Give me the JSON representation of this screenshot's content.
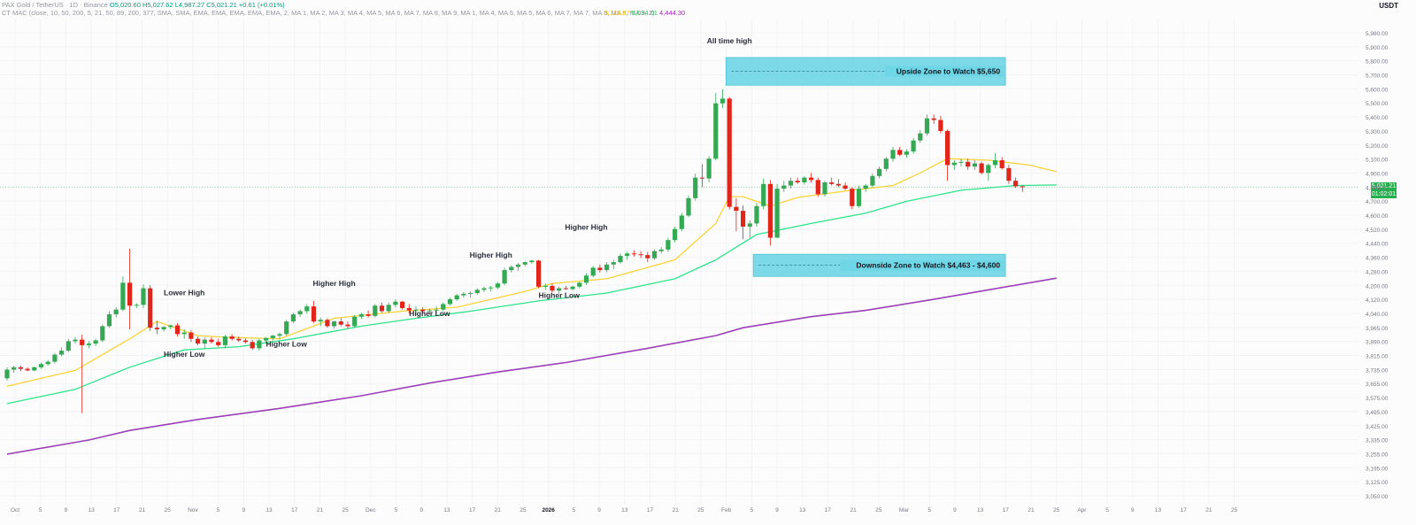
{
  "header": {
    "symbol_line": "PAX Gold / TetherUS · 1D · Binance",
    "ohlc": {
      "open": "O5,020.60",
      "high": "H5,027.62",
      "low": "L4,987.27",
      "close": "C5,021.21",
      "change": "+0.61 (+0.01%)"
    },
    "indicator_line": "CT MAC (close, 10, 50, 200, 5, 21, 50, 89, 200, 377, SMA, SMA, EMA, EMA, EMA, EMA, EMA, 2, MA 1, MA 2, MA 3, MA 4, MA 5, MA 6, MA 7, MA 8, MA 9, MA 1, MA 4, MA 5, MA 5, MA 6, MA 7, MA 7, MA 8, MA 8, MA 9, 2)",
    "ma_values": [
      {
        "text": "5,118.67",
        "color": "#f7c500"
      },
      {
        "text": "5,034.01",
        "color": "#22c55e"
      },
      {
        "text": "4,444.30",
        "color": "#9c27b0"
      }
    ]
  },
  "currency": "USDT",
  "last_price": "5,021.21",
  "countdown": "01:02:01",
  "colors": {
    "up": "#34a853",
    "down": "#e1251b",
    "ema_fast": "#f9d33a",
    "ema_mid": "#2ee38a",
    "ema_slow": "#9c3fb8",
    "zone": "#6fd6e6"
  },
  "chart_data": {
    "type": "candlestick",
    "y_range": [
      3050,
      5980
    ],
    "y_ticks": [
      "5,980.00",
      "5,900.00",
      "5,800.00",
      "5,700.00",
      "5,600.00",
      "5,500.00",
      "5,400.00",
      "5,300.00",
      "5,200.00",
      "5,100.00",
      "4,900.00",
      "4,800.00",
      "4,700.00",
      "4,600.00",
      "4,520.00",
      "4,440.00",
      "4,360.00",
      "4,280.00",
      "4,200.00",
      "4,120.00",
      "4,040.00",
      "3,965.00",
      "3,890.00",
      "3,815.00",
      "3,735.00",
      "3,655.00",
      "3,575.00",
      "3,495.00",
      "3,425.00",
      "3,335.00",
      "3,255.00",
      "3,195.00",
      "3,125.00",
      "3,050.00"
    ],
    "x_ticks": [
      "Oct",
      "5",
      "9",
      "13",
      "17",
      "21",
      "25",
      "Nov",
      "5",
      "9",
      "13",
      "17",
      "21",
      "25",
      "Dec",
      "5",
      "9",
      "13",
      "17",
      "21",
      "25",
      "2026",
      "5",
      "9",
      "13",
      "17",
      "21",
      "25",
      "Feb",
      "5",
      "9",
      "13",
      "17",
      "21",
      "25",
      "Mar",
      "5",
      "9",
      "13",
      "17",
      "21",
      "25",
      "Apr",
      "5",
      "9",
      "13",
      "17",
      "21",
      "25"
    ],
    "candles": [
      [
        3810,
        3880,
        3795,
        3865
      ],
      [
        3865,
        3890,
        3845,
        3880
      ],
      [
        3880,
        3890,
        3855,
        3870
      ],
      [
        3870,
        3880,
        3855,
        3860
      ],
      [
        3860,
        3885,
        3855,
        3880
      ],
      [
        3880,
        3910,
        3870,
        3900
      ],
      [
        3900,
        3925,
        3890,
        3915
      ],
      [
        3915,
        3970,
        3905,
        3960
      ],
      [
        3960,
        4005,
        3950,
        3985
      ],
      [
        3985,
        4060,
        3975,
        4045
      ],
      [
        4045,
        4070,
        4030,
        4055
      ],
      [
        4055,
        4085,
        3590,
        4020
      ],
      [
        4020,
        4045,
        4000,
        4030
      ],
      [
        4030,
        4060,
        4015,
        4050
      ],
      [
        4050,
        4150,
        4040,
        4140
      ],
      [
        4140,
        4235,
        4130,
        4215
      ],
      [
        4215,
        4260,
        4195,
        4245
      ],
      [
        4245,
        4455,
        4235,
        4415
      ],
      [
        4415,
        4630,
        4120,
        4270
      ],
      [
        4270,
        4285,
        4255,
        4275
      ],
      [
        4275,
        4405,
        4255,
        4380
      ],
      [
        4380,
        4400,
        4110,
        4130
      ],
      [
        4130,
        4175,
        4090,
        4120
      ],
      [
        4120,
        4140,
        4105,
        4135
      ],
      [
        4135,
        4150,
        4120,
        4145
      ],
      [
        4145,
        4160,
        4075,
        4090
      ],
      [
        4090,
        4120,
        4060,
        4100
      ],
      [
        4100,
        4115,
        4040,
        4060
      ],
      [
        4060,
        4075,
        4020,
        4030
      ],
      [
        4030,
        4070,
        4000,
        4055
      ],
      [
        4055,
        4070,
        4030,
        4040
      ],
      [
        4040,
        4060,
        4010,
        4020
      ],
      [
        4020,
        4085,
        4000,
        4075
      ],
      [
        4075,
        4090,
        4050,
        4060
      ],
      [
        4060,
        4075,
        4040,
        4050
      ],
      [
        4050,
        4065,
        4030,
        4040
      ],
      [
        4040,
        4055,
        3990,
        4000
      ],
      [
        4000,
        4060,
        3985,
        4050
      ],
      [
        4050,
        4070,
        4030,
        4065
      ],
      [
        4065,
        4085,
        4050,
        4080
      ],
      [
        4080,
        4100,
        4060,
        4090
      ],
      [
        4090,
        4180,
        4080,
        4170
      ],
      [
        4170,
        4225,
        4160,
        4215
      ],
      [
        4215,
        4245,
        4200,
        4235
      ],
      [
        4235,
        4280,
        4220,
        4265
      ],
      [
        4265,
        4300,
        4160,
        4170
      ],
      [
        4170,
        4195,
        4140,
        4180
      ],
      [
        4180,
        4190,
        4130,
        4140
      ],
      [
        4140,
        4175,
        4125,
        4170
      ],
      [
        4170,
        4190,
        4140,
        4150
      ],
      [
        4150,
        4170,
        4125,
        4140
      ],
      [
        4140,
        4210,
        4130,
        4200
      ],
      [
        4200,
        4225,
        4185,
        4215
      ],
      [
        4215,
        4240,
        4195,
        4205
      ],
      [
        4205,
        4280,
        4195,
        4270
      ],
      [
        4270,
        4290,
        4225,
        4235
      ],
      [
        4235,
        4290,
        4225,
        4275
      ],
      [
        4275,
        4310,
        4260,
        4295
      ],
      [
        4295,
        4300,
        4245,
        4255
      ],
      [
        4255,
        4280,
        4220,
        4240
      ],
      [
        4240,
        4265,
        4210,
        4245
      ],
      [
        4245,
        4260,
        4220,
        4235
      ],
      [
        4235,
        4250,
        4215,
        4240
      ],
      [
        4240,
        4265,
        4220,
        4245
      ],
      [
        4245,
        4290,
        4235,
        4280
      ],
      [
        4280,
        4320,
        4270,
        4310
      ],
      [
        4310,
        4345,
        4300,
        4335
      ],
      [
        4335,
        4355,
        4320,
        4345
      ],
      [
        4345,
        4360,
        4320,
        4350
      ],
      [
        4350,
        4380,
        4340,
        4370
      ],
      [
        4370,
        4390,
        4355,
        4380
      ],
      [
        4380,
        4395,
        4360,
        4385
      ],
      [
        4385,
        4420,
        4375,
        4410
      ],
      [
        4410,
        4510,
        4400,
        4495
      ],
      [
        4495,
        4525,
        4480,
        4515
      ],
      [
        4515,
        4540,
        4490,
        4530
      ],
      [
        4530,
        4550,
        4520,
        4545
      ],
      [
        4545,
        4560,
        4535,
        4555
      ],
      [
        4555,
        4560,
        4380,
        4390
      ],
      [
        4390,
        4410,
        4370,
        4395
      ],
      [
        4395,
        4410,
        4355,
        4365
      ],
      [
        4365,
        4390,
        4345,
        4380
      ],
      [
        4380,
        4395,
        4370,
        4375
      ],
      [
        4375,
        4395,
        4365,
        4390
      ],
      [
        4390,
        4420,
        4380,
        4415
      ],
      [
        4415,
        4475,
        4400,
        4460
      ],
      [
        4460,
        4520,
        4450,
        4510
      ],
      [
        4510,
        4530,
        4480,
        4495
      ],
      [
        4495,
        4545,
        4480,
        4530
      ],
      [
        4530,
        4560,
        4500,
        4545
      ],
      [
        4545,
        4600,
        4535,
        4585
      ],
      [
        4585,
        4610,
        4560,
        4600
      ],
      [
        4600,
        4620,
        4580,
        4595
      ],
      [
        4595,
        4615,
        4570,
        4590
      ],
      [
        4590,
        4610,
        4545,
        4570
      ],
      [
        4570,
        4625,
        4560,
        4615
      ],
      [
        4615,
        4640,
        4600,
        4625
      ],
      [
        4625,
        4700,
        4610,
        4685
      ],
      [
        4685,
        4770,
        4670,
        4755
      ],
      [
        4755,
        4855,
        4740,
        4840
      ],
      [
        4840,
        4965,
        4830,
        4950
      ],
      [
        4950,
        5105,
        4935,
        5080
      ],
      [
        5080,
        5165,
        5020,
        5075
      ],
      [
        5075,
        5215,
        5050,
        5200
      ],
      [
        5200,
        5615,
        5190,
        5550
      ],
      [
        5550,
        5640,
        5520,
        5580
      ],
      [
        5580,
        5590,
        4880,
        4895
      ],
      [
        4895,
        4950,
        4740,
        4870
      ],
      [
        4870,
        4905,
        4690,
        4770
      ],
      [
        4770,
        4810,
        4700,
        4790
      ],
      [
        4790,
        4920,
        4770,
        4900
      ],
      [
        4900,
        5075,
        4880,
        5040
      ],
      [
        5040,
        5065,
        4650,
        4700
      ],
      [
        4700,
        5040,
        4700,
        5010
      ],
      [
        5010,
        5060,
        4990,
        5030
      ],
      [
        5030,
        5080,
        5010,
        5060
      ],
      [
        5060,
        5080,
        5040,
        5050
      ],
      [
        5050,
        5090,
        5035,
        5080
      ],
      [
        5080,
        5110,
        5050,
        5065
      ],
      [
        5065,
        5080,
        4960,
        4975
      ],
      [
        4975,
        5060,
        4960,
        5050
      ],
      [
        5050,
        5080,
        5030,
        5040
      ],
      [
        5040,
        5070,
        5020,
        5030
      ],
      [
        5030,
        5050,
        5000,
        5010
      ],
      [
        5010,
        5020,
        4880,
        4900
      ],
      [
        4900,
        5030,
        4890,
        5010
      ],
      [
        5010,
        5040,
        4990,
        5030
      ],
      [
        5030,
        5105,
        5020,
        5090
      ],
      [
        5090,
        5150,
        5075,
        5135
      ],
      [
        5135,
        5210,
        5120,
        5200
      ],
      [
        5200,
        5275,
        5180,
        5255
      ],
      [
        5255,
        5275,
        5215,
        5225
      ],
      [
        5225,
        5260,
        5205,
        5245
      ],
      [
        5245,
        5330,
        5230,
        5315
      ],
      [
        5315,
        5380,
        5300,
        5360
      ],
      [
        5360,
        5480,
        5345,
        5455
      ],
      [
        5455,
        5480,
        5420,
        5445
      ],
      [
        5445,
        5470,
        5360,
        5375
      ],
      [
        5375,
        5385,
        5060,
        5160
      ],
      [
        5160,
        5190,
        5130,
        5175
      ],
      [
        5175,
        5200,
        5150,
        5180
      ],
      [
        5180,
        5200,
        5130,
        5150
      ],
      [
        5150,
        5190,
        5130,
        5170
      ],
      [
        5170,
        5180,
        5100,
        5110
      ],
      [
        5110,
        5170,
        5060,
        5160
      ],
      [
        5160,
        5235,
        5140,
        5190
      ],
      [
        5190,
        5210,
        5130,
        5140
      ],
      [
        5140,
        5160,
        5040,
        5060
      ],
      [
        5060,
        5080,
        5015,
        5025
      ],
      [
        5025,
        5030,
        4990,
        5021
      ]
    ],
    "ema_fast_points": [
      [
        0,
        3760
      ],
      [
        10,
        3860
      ],
      [
        18,
        4060
      ],
      [
        22,
        4170
      ],
      [
        28,
        4080
      ],
      [
        32,
        4070
      ],
      [
        40,
        4060
      ],
      [
        48,
        4190
      ],
      [
        58,
        4235
      ],
      [
        66,
        4260
      ],
      [
        76,
        4360
      ],
      [
        80,
        4410
      ],
      [
        88,
        4440
      ],
      [
        98,
        4560
      ],
      [
        104,
        4790
      ],
      [
        106,
        4960
      ],
      [
        108,
        4960
      ],
      [
        112,
        4900
      ],
      [
        116,
        4955
      ],
      [
        124,
        5000
      ],
      [
        130,
        5030
      ],
      [
        134,
        5110
      ],
      [
        138,
        5200
      ],
      [
        144,
        5190
      ],
      [
        150,
        5160
      ],
      [
        154,
        5118
      ]
    ],
    "ema_mid_points": [
      [
        0,
        3650
      ],
      [
        10,
        3740
      ],
      [
        18,
        3880
      ],
      [
        26,
        3990
      ],
      [
        34,
        4010
      ],
      [
        42,
        4060
      ],
      [
        52,
        4140
      ],
      [
        60,
        4190
      ],
      [
        68,
        4235
      ],
      [
        78,
        4300
      ],
      [
        88,
        4350
      ],
      [
        98,
        4440
      ],
      [
        104,
        4560
      ],
      [
        110,
        4720
      ],
      [
        118,
        4790
      ],
      [
        126,
        4855
      ],
      [
        132,
        4930
      ],
      [
        140,
        5000
      ],
      [
        148,
        5030
      ],
      [
        154,
        5034
      ]
    ],
    "ema_slow_points": [
      [
        0,
        3330
      ],
      [
        12,
        3420
      ],
      [
        18,
        3480
      ],
      [
        28,
        3550
      ],
      [
        40,
        3620
      ],
      [
        52,
        3700
      ],
      [
        62,
        3780
      ],
      [
        72,
        3850
      ],
      [
        82,
        3910
      ],
      [
        94,
        4000
      ],
      [
        104,
        4080
      ],
      [
        108,
        4130
      ],
      [
        118,
        4200
      ],
      [
        126,
        4240
      ],
      [
        136,
        4310
      ],
      [
        144,
        4370
      ],
      [
        154,
        4444
      ]
    ],
    "zones": [
      {
        "label": "Upside Zone to Watch $5,650",
        "top": 5840,
        "bottom": 5665,
        "from_index": 105.5,
        "to_index": 146.5
      },
      {
        "label": "Downside Zone to Watch $4,463 - $4,600",
        "top": 4595,
        "bottom": 4455,
        "from_index": 109.5,
        "to_index": 146.5
      }
    ],
    "annotations": [
      {
        "text": "All time high",
        "index": 106,
        "value": 5930
      },
      {
        "text": "Lower High",
        "index": 26,
        "value": 4335
      },
      {
        "text": "Higher Low",
        "index": 26,
        "value": 3945
      },
      {
        "text": "Higher High",
        "index": 48,
        "value": 4395
      },
      {
        "text": "Higher Low",
        "index": 41,
        "value": 4010
      },
      {
        "text": "Higher High",
        "index": 71,
        "value": 4575
      },
      {
        "text": "Higher Low",
        "index": 62,
        "value": 4205
      },
      {
        "text": "Higher High",
        "index": 85,
        "value": 4750
      },
      {
        "text": "Higher Low",
        "index": 81,
        "value": 4320
      }
    ]
  }
}
